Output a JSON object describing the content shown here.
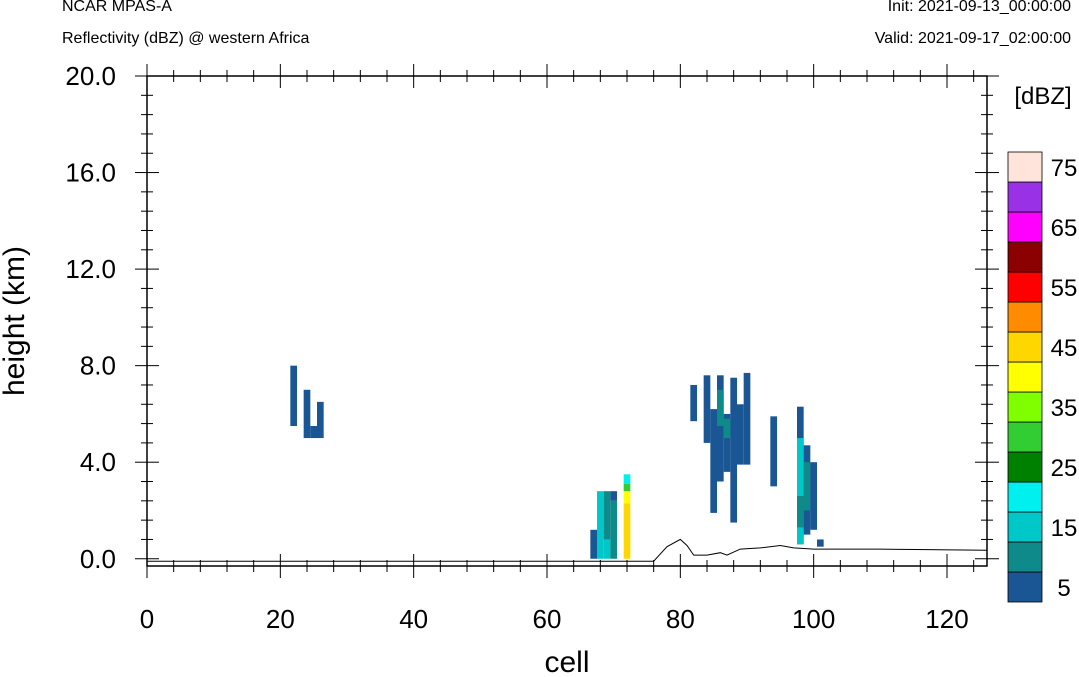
{
  "header": {
    "model": "NCAR MPAS-A",
    "subtitle": "Reflectivity (dBZ) @ western Africa",
    "init": "Init: 2021-09-13_00:00:00",
    "valid": "Valid: 2021-09-17_02:00:00"
  },
  "chart_data": {
    "type": "heatmap",
    "xlabel": "cell",
    "ylabel": "height (km)",
    "xlim": [
      0,
      126
    ],
    "ylim": [
      -0.3,
      20.0
    ],
    "x_ticks": [
      0,
      20,
      40,
      60,
      80,
      100,
      120
    ],
    "x_tick_labels": [
      "0",
      "20",
      "40",
      "60",
      "80",
      "100",
      "120"
    ],
    "y_ticks": [
      0,
      4,
      8,
      12,
      16,
      20
    ],
    "y_tick_labels": [
      "0.0",
      "4.0",
      "8.0",
      "12.0",
      "16.0",
      "20.0"
    ],
    "colorbar": {
      "units": "[dBZ]",
      "levels": [
        5,
        10,
        15,
        20,
        25,
        30,
        35,
        40,
        45,
        50,
        55,
        60,
        65,
        70,
        75
      ],
      "labels": [
        "5",
        "15",
        "25",
        "35",
        "45",
        "55",
        "65",
        "75"
      ],
      "label_values": [
        5,
        15,
        25,
        35,
        45,
        55,
        65,
        75
      ],
      "colors": [
        "#1a5694",
        "#0e8a8a",
        "#00c8c8",
        "#00f0f0",
        "#008000",
        "#32cd32",
        "#7fff00",
        "#ffff00",
        "#ffd700",
        "#ff8c00",
        "#ff0000",
        "#8b0000",
        "#ff00ff",
        "#9932e6",
        "#ffe4dc"
      ]
    },
    "cells": [
      {
        "x0": 21.5,
        "x1": 22.5,
        "y0": 5.5,
        "y1": 8.0,
        "dbz": 5
      },
      {
        "x0": 23.5,
        "x1": 24.5,
        "y0": 5.0,
        "y1": 7.0,
        "dbz": 5
      },
      {
        "x0": 24.5,
        "x1": 25.5,
        "y0": 5.0,
        "y1": 5.5,
        "dbz": 5
      },
      {
        "x0": 25.5,
        "x1": 26.5,
        "y0": 5.0,
        "y1": 6.5,
        "dbz": 5
      },
      {
        "x0": 66.5,
        "x1": 67.5,
        "y0": 0.0,
        "y1": 1.2,
        "dbz": 5
      },
      {
        "x0": 67.5,
        "x1": 68.5,
        "y0": 0.0,
        "y1": 2.8,
        "dbz": 15
      },
      {
        "x0": 68.5,
        "x1": 69.5,
        "y0": 0.0,
        "y1": 0.8,
        "dbz": 15
      },
      {
        "x0": 68.5,
        "x1": 69.5,
        "y0": 0.8,
        "y1": 2.8,
        "dbz": 10
      },
      {
        "x0": 69.5,
        "x1": 70.5,
        "y0": 0.0,
        "y1": 2.4,
        "dbz": 10
      },
      {
        "x0": 69.5,
        "x1": 70.5,
        "y0": 2.4,
        "y1": 2.8,
        "dbz": 5
      },
      {
        "x0": 71.5,
        "x1": 72.5,
        "y0": 0.0,
        "y1": 2.3,
        "dbz": 45
      },
      {
        "x0": 71.5,
        "x1": 72.5,
        "y0": 2.3,
        "y1": 2.8,
        "dbz": 40
      },
      {
        "x0": 71.5,
        "x1": 72.5,
        "y0": 2.8,
        "y1": 3.1,
        "dbz": 30
      },
      {
        "x0": 71.5,
        "x1": 72.5,
        "y0": 3.1,
        "y1": 3.5,
        "dbz": 20
      },
      {
        "x0": 81.5,
        "x1": 82.5,
        "y0": 5.7,
        "y1": 7.2,
        "dbz": 5
      },
      {
        "x0": 83.5,
        "x1": 84.5,
        "y0": 4.8,
        "y1": 7.6,
        "dbz": 5
      },
      {
        "x0": 84.5,
        "x1": 85.5,
        "y0": 1.9,
        "y1": 6.2,
        "dbz": 5
      },
      {
        "x0": 85.5,
        "x1": 86.5,
        "y0": 3.2,
        "y1": 7.6,
        "dbz": 5
      },
      {
        "x0": 85.5,
        "x1": 86.5,
        "y0": 5.5,
        "y1": 7.0,
        "dbz": 10
      },
      {
        "x0": 86.5,
        "x1": 87.5,
        "y0": 3.6,
        "y1": 6.0,
        "dbz": 5
      },
      {
        "x0": 86.5,
        "x1": 87.5,
        "y0": 5.0,
        "y1": 5.8,
        "dbz": 10
      },
      {
        "x0": 87.5,
        "x1": 88.5,
        "y0": 1.5,
        "y1": 7.5,
        "dbz": 5
      },
      {
        "x0": 88.5,
        "x1": 89.5,
        "y0": 3.9,
        "y1": 6.4,
        "dbz": 5
      },
      {
        "x0": 89.5,
        "x1": 90.5,
        "y0": 3.9,
        "y1": 7.7,
        "dbz": 5
      },
      {
        "x0": 93.5,
        "x1": 94.5,
        "y0": 3.0,
        "y1": 5.9,
        "dbz": 5
      },
      {
        "x0": 97.5,
        "x1": 98.5,
        "y0": 0.6,
        "y1": 6.3,
        "dbz": 5
      },
      {
        "x0": 97.5,
        "x1": 98.5,
        "y0": 0.6,
        "y1": 5.0,
        "dbz": 15
      },
      {
        "x0": 97.5,
        "x1": 98.5,
        "y0": 1.3,
        "y1": 2.6,
        "dbz": 10
      },
      {
        "x0": 98.5,
        "x1": 99.5,
        "y0": 1.0,
        "y1": 4.7,
        "dbz": 5
      },
      {
        "x0": 98.5,
        "x1": 99.5,
        "y0": 2.0,
        "y1": 4.0,
        "dbz": 10
      },
      {
        "x0": 99.5,
        "x1": 100.5,
        "y0": 1.2,
        "y1": 4.0,
        "dbz": 5
      },
      {
        "x0": 100.5,
        "x1": 101.5,
        "y0": 0.5,
        "y1": 0.8,
        "dbz": 5
      }
    ],
    "terrain": [
      [
        0,
        -0.1
      ],
      [
        62,
        -0.1
      ],
      [
        76,
        -0.1
      ],
      [
        77,
        0.2
      ],
      [
        78,
        0.5
      ],
      [
        80,
        0.8
      ],
      [
        81,
        0.55
      ],
      [
        82,
        0.15
      ],
      [
        84,
        0.15
      ],
      [
        86,
        0.25
      ],
      [
        87,
        0.15
      ],
      [
        89,
        0.4
      ],
      [
        92,
        0.45
      ],
      [
        95,
        0.55
      ],
      [
        97,
        0.45
      ],
      [
        100,
        0.4
      ],
      [
        103,
        0.4
      ],
      [
        110,
        0.4
      ],
      [
        117,
        0.38
      ],
      [
        126,
        0.35
      ]
    ]
  }
}
